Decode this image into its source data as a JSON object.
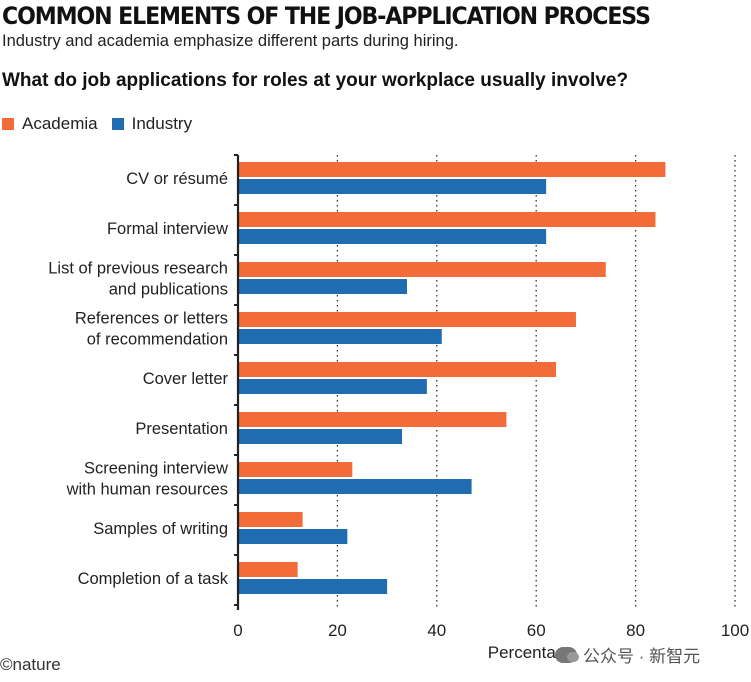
{
  "header": {
    "title": "COMMON ELEMENTS OF THE JOB-APPLICATION PROCESS",
    "subtitle": "Industry and academia emphasize different parts during hiring.",
    "question": "What do job applications for roles at your workplace usually involve?"
  },
  "footer": {
    "logo": "©nature",
    "watermark": "公众号 · 新智元"
  },
  "colors": {
    "academia": "#f26b38",
    "industry": "#1f6cb0"
  },
  "chart_data": {
    "type": "bar",
    "orientation": "horizontal",
    "categories": [
      [
        "CV or résumé"
      ],
      [
        "Formal interview"
      ],
      [
        "List of previous research",
        "and publications"
      ],
      [
        "References or letters",
        "of recommendation"
      ],
      [
        "Cover letter"
      ],
      [
        "Presentation"
      ],
      [
        "Screening interview",
        "with human resources"
      ],
      [
        "Samples of writing"
      ],
      [
        "Completion of a task"
      ]
    ],
    "series": [
      {
        "name": "Academia",
        "values": [
          86,
          84,
          74,
          68,
          64,
          54,
          23,
          13,
          12
        ]
      },
      {
        "name": "Industry",
        "values": [
          62,
          62,
          34,
          41,
          38,
          33,
          47,
          22,
          30
        ]
      }
    ],
    "xlabel": "Percentage",
    "xlim": [
      0,
      100
    ],
    "xticks": [
      0,
      20,
      40,
      60,
      80,
      100
    ],
    "grid": "vertical dotted",
    "legend": "top-left"
  }
}
